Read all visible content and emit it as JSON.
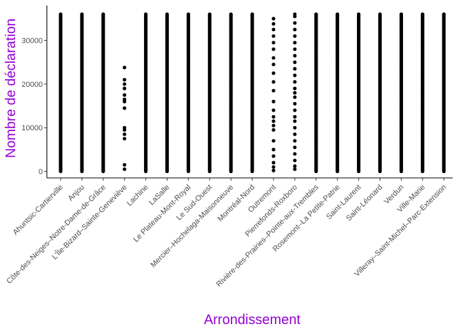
{
  "chart_data": {
    "type": "scatter",
    "title": "",
    "xlabel": "Arrondissement",
    "ylabel": "Nombre de déclaration",
    "ylim": [
      -1500,
      38000
    ],
    "yticks": [
      0,
      10000,
      20000,
      30000
    ],
    "ytick_labels": [
      "0",
      "10000",
      "20000",
      "30000"
    ],
    "grid": false,
    "legend": "none",
    "point_color": "#000000",
    "title_color": "#9400d3",
    "categories": [
      "Ahuntsic-Cartierville",
      "Anjou",
      "Côte-des-Neiges–Notre-Dame-de-Grâce",
      "L'Île-Bizard–Sainte-Geneviève",
      "Lachine",
      "LaSalle",
      "Le Plateau-Mont-Royal",
      "Le Sud-Ouest",
      "Mercier–Hochelaga-Maisonneuve",
      "Montréal-Nord",
      "Outremont",
      "Pierrefonds-Roxboro",
      "Rivière-des-Prairies–Pointe-aux-Trembles",
      "Rosemont–La Petite-Patrie",
      "Saint-Laurent",
      "Saint-Léonard",
      "Verdun",
      "Ville-Marie",
      "Villeray–Saint-Michel–Parc-Extension"
    ],
    "ranges": [
      {
        "category": "Ahuntsic-Cartierville",
        "min": 0,
        "max": 36000,
        "density": "dense"
      },
      {
        "category": "Anjou",
        "min": 0,
        "max": 36000,
        "density": "dense"
      },
      {
        "category": "Côte-des-Neiges–Notre-Dame-de-Grâce",
        "min": 0,
        "max": 36000,
        "density": "dense"
      },
      {
        "category": "L'Île-Bizard–Sainte-Geneviève",
        "min": 500,
        "max": 23800,
        "density": "sparse"
      },
      {
        "category": "Lachine",
        "min": 0,
        "max": 36000,
        "density": "dense"
      },
      {
        "category": "LaSalle",
        "min": 0,
        "max": 36000,
        "density": "dense"
      },
      {
        "category": "Le Plateau-Mont-Royal",
        "min": 0,
        "max": 36000,
        "density": "dense"
      },
      {
        "category": "Le Sud-Ouest",
        "min": 0,
        "max": 36000,
        "density": "dense"
      },
      {
        "category": "Mercier–Hochelaga-Maisonneuve",
        "min": 0,
        "max": 36000,
        "density": "dense"
      },
      {
        "category": "Montréal-Nord",
        "min": 0,
        "max": 36000,
        "density": "dense"
      },
      {
        "category": "Outremont",
        "min": 200,
        "max": 35000,
        "density": "medium"
      },
      {
        "category": "Pierrefonds-Roxboro",
        "min": 500,
        "max": 36000,
        "density": "medium"
      },
      {
        "category": "Rivière-des-Prairies–Pointe-aux-Trembles",
        "min": 0,
        "max": 36000,
        "density": "dense"
      },
      {
        "category": "Rosemont–La Petite-Patrie",
        "min": 0,
        "max": 36000,
        "density": "dense"
      },
      {
        "category": "Saint-Laurent",
        "min": 0,
        "max": 36000,
        "density": "dense"
      },
      {
        "category": "Saint-Léonard",
        "min": 0,
        "max": 36000,
        "density": "dense"
      },
      {
        "category": "Verdun",
        "min": 0,
        "max": 36000,
        "density": "dense"
      },
      {
        "category": "Ville-Marie",
        "min": 0,
        "max": 36000,
        "density": "dense"
      },
      {
        "category": "Villeray–Saint-Michel–Parc-Extension",
        "min": 0,
        "max": 36000,
        "density": "dense"
      }
    ],
    "sparse_points": {
      "L'Île-Bizard–Sainte-Geneviève": [
        500,
        1500,
        7500,
        8500,
        9500,
        10000,
        14500,
        16000,
        16500,
        17500,
        19000,
        20000,
        21000,
        23800
      ],
      "Outremont": [
        200,
        1000,
        2000,
        3500,
        5000,
        7000,
        9500,
        10500,
        11500,
        12500,
        14000,
        16000,
        18500,
        20500,
        22500,
        24500,
        26000,
        28000,
        29500,
        31000,
        32500,
        33800,
        35000
      ],
      "Pierrefonds-Roxboro": [
        500,
        1200,
        2500,
        4000,
        5500,
        7000,
        8500,
        10000,
        11500,
        12500,
        14000,
        15500,
        17000,
        18000,
        19000,
        20500,
        22000,
        23500,
        25000,
        26500,
        28000,
        29500,
        31000,
        32500,
        34000,
        35500,
        36000
      ]
    }
  }
}
